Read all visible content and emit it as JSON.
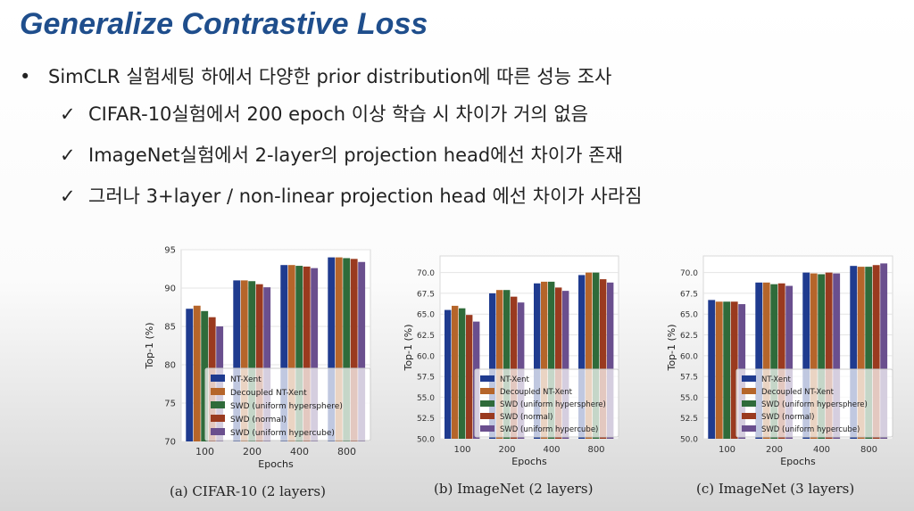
{
  "slide": {
    "title": "Generalize Contrastive Loss",
    "bullets": [
      {
        "marker": "•",
        "text": "SimCLR 실험세팅 하에서 다양한 prior distribution에 따른 성능 조사"
      },
      {
        "marker": "✓",
        "text": "CIFAR-10실험에서 200 epoch 이상 학습 시 차이가 거의 없음"
      },
      {
        "marker": "✓",
        "text": "ImageNet실험에서 2-layer의 projection head에선 차이가 존재"
      },
      {
        "marker": "✓",
        "text": "그러나 3+layer / non-linear projection head 에선 차이가 사라짐"
      }
    ]
  },
  "colors": {
    "NT-Xent": "#1f3b8f",
    "Decoupled NT-Xent": "#b5652a",
    "SWD (uniform hypersphere)": "#2f6b3a",
    "SWD (normal)": "#9a3a1f",
    "SWD (uniform hypercube)": "#6a4f8e"
  },
  "chart_data": [
    {
      "type": "bar",
      "caption": "(a) CIFAR-10 (2 layers)",
      "xlabel": "Epochs",
      "ylabel": "Top-1 (%)",
      "categories": [
        "100",
        "200",
        "400",
        "800"
      ],
      "ylim": [
        70,
        95
      ],
      "yticks": [
        "70",
        "75",
        "80",
        "85",
        "90",
        "95"
      ],
      "legend_position": "lower-right",
      "series": [
        {
          "name": "NT-Xent",
          "values": [
            87.3,
            91.0,
            93.0,
            94.0
          ]
        },
        {
          "name": "Decoupled NT-Xent",
          "values": [
            87.7,
            91.0,
            93.0,
            94.0
          ]
        },
        {
          "name": "SWD (uniform hypersphere)",
          "values": [
            87.0,
            90.9,
            92.9,
            93.9
          ]
        },
        {
          "name": "SWD (normal)",
          "values": [
            86.2,
            90.5,
            92.8,
            93.8
          ]
        },
        {
          "name": "SWD (uniform hypercube)",
          "values": [
            85.0,
            90.1,
            92.6,
            93.4
          ]
        }
      ]
    },
    {
      "type": "bar",
      "caption": "(b) ImageNet (2 layers)",
      "xlabel": "Epochs",
      "ylabel": "Top-1 (%)",
      "categories": [
        "100",
        "200",
        "400",
        "800"
      ],
      "ylim": [
        50,
        72
      ],
      "yticks": [
        "50.0",
        "52.5",
        "55.0",
        "57.5",
        "60.0",
        "62.5",
        "65.0",
        "67.5",
        "70.0"
      ],
      "legend_position": "lower-right",
      "series": [
        {
          "name": "NT-Xent",
          "values": [
            65.5,
            67.5,
            68.7,
            69.7
          ]
        },
        {
          "name": "Decoupled NT-Xent",
          "values": [
            66.0,
            67.9,
            68.9,
            70.0
          ]
        },
        {
          "name": "SWD (uniform hypersphere)",
          "values": [
            65.7,
            67.9,
            68.9,
            70.0
          ]
        },
        {
          "name": "SWD (normal)",
          "values": [
            64.9,
            67.1,
            68.2,
            69.2
          ]
        },
        {
          "name": "SWD (uniform hypercube)",
          "values": [
            64.1,
            66.4,
            67.8,
            68.8
          ]
        }
      ]
    },
    {
      "type": "bar",
      "caption": "(c) ImageNet (3 layers)",
      "xlabel": "Epochs",
      "ylabel": "Top-1 (%)",
      "categories": [
        "100",
        "200",
        "400",
        "800"
      ],
      "ylim": [
        50,
        72
      ],
      "yticks": [
        "50.0",
        "52.5",
        "55.0",
        "57.5",
        "60.0",
        "62.5",
        "65.0",
        "67.5",
        "70.0"
      ],
      "legend_position": "lower-right",
      "series": [
        {
          "name": "NT-Xent",
          "values": [
            66.7,
            68.8,
            70.0,
            70.8
          ]
        },
        {
          "name": "Decoupled NT-Xent",
          "values": [
            66.5,
            68.8,
            69.9,
            70.7
          ]
        },
        {
          "name": "SWD (uniform hypersphere)",
          "values": [
            66.5,
            68.6,
            69.8,
            70.7
          ]
        },
        {
          "name": "SWD (normal)",
          "values": [
            66.5,
            68.7,
            70.0,
            70.9
          ]
        },
        {
          "name": "SWD (uniform hypercube)",
          "values": [
            66.2,
            68.4,
            69.9,
            71.1
          ]
        }
      ]
    }
  ]
}
